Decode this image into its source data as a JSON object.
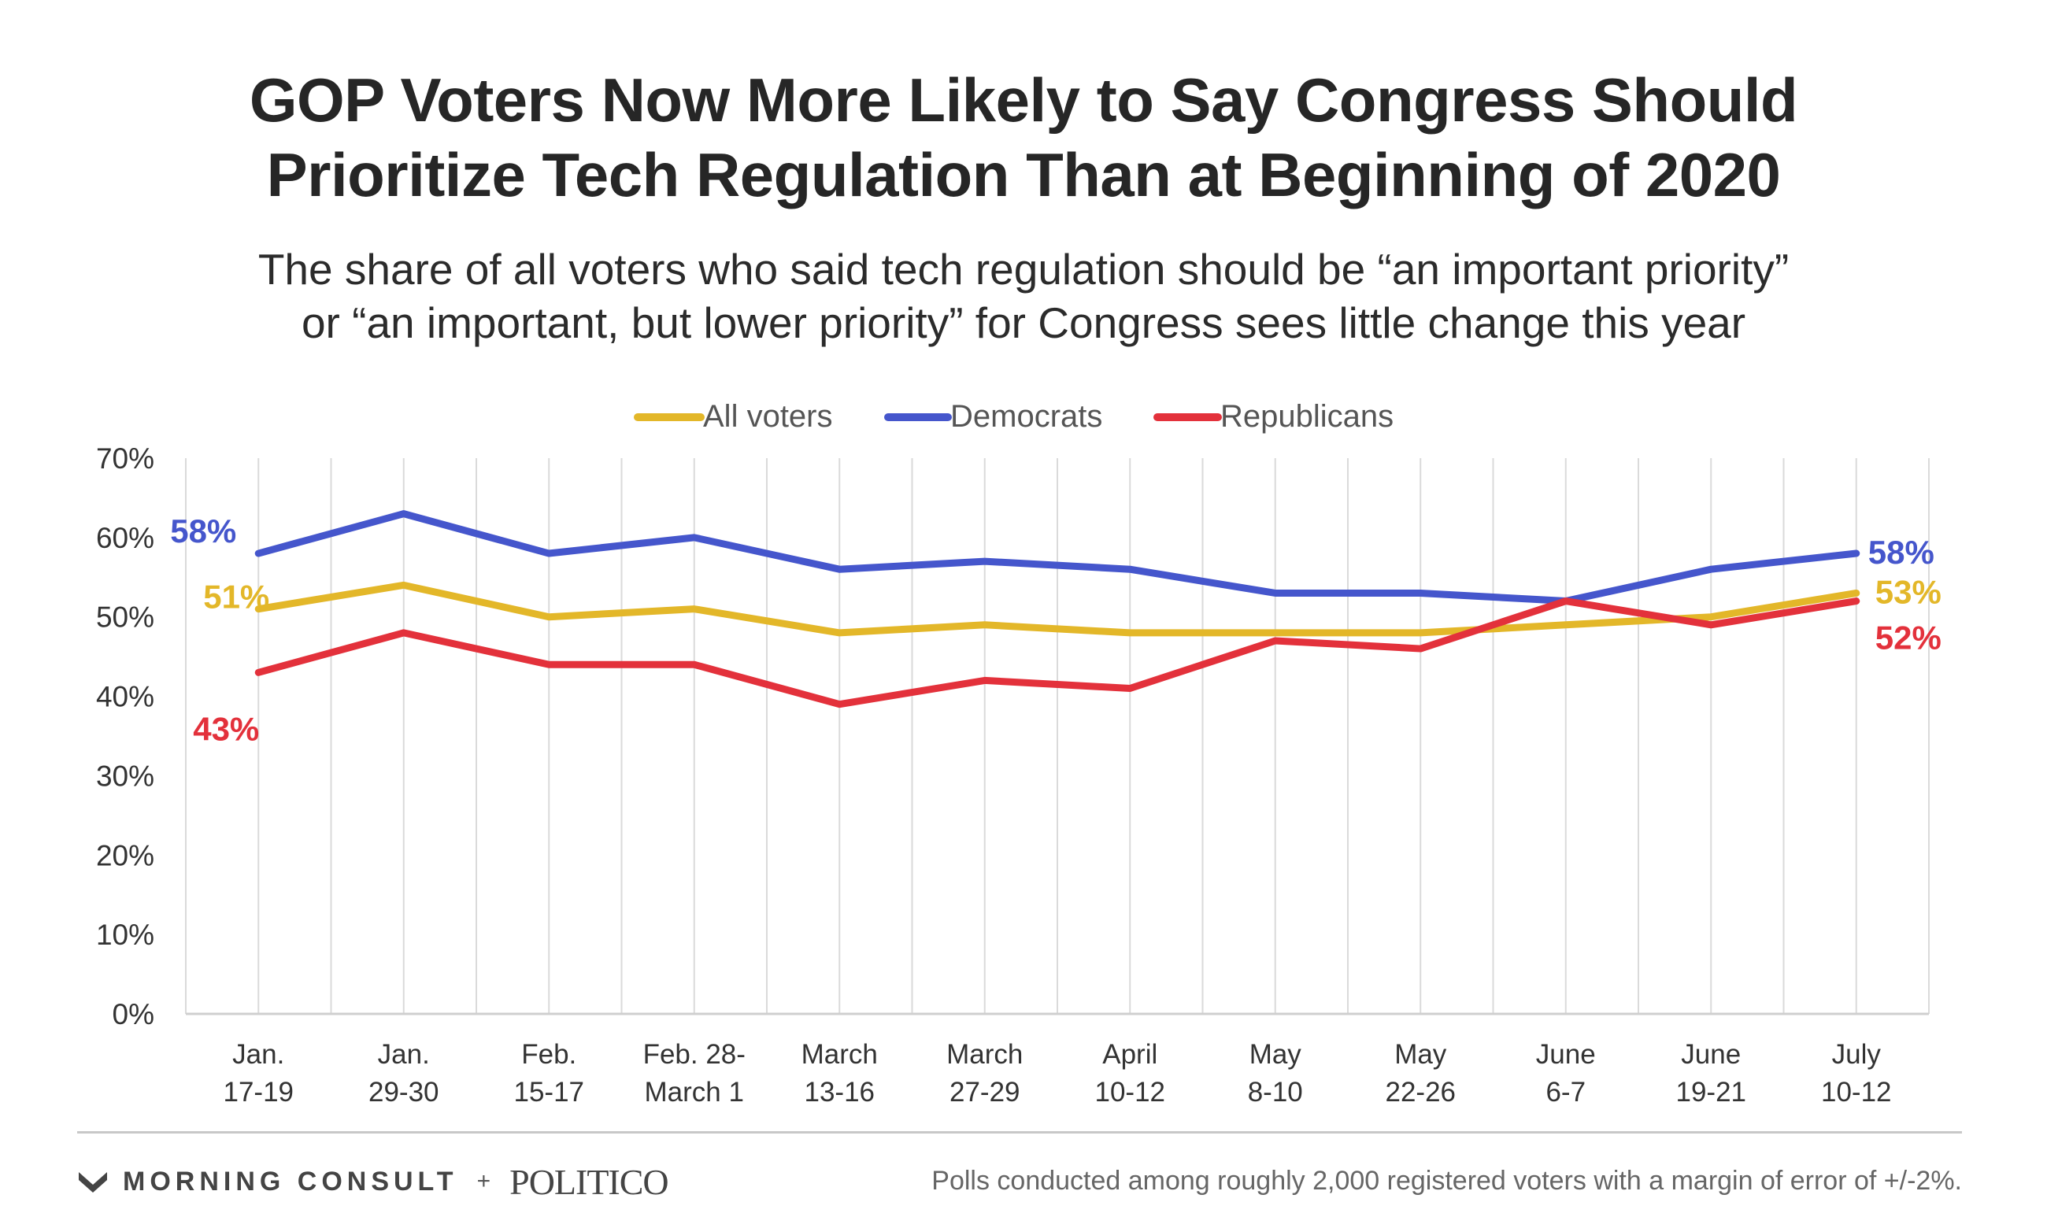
{
  "header": {
    "title_line1": "GOP Voters Now More Likely to Say Congress Should",
    "title_line2": "Prioritize Tech Regulation Than at Beginning of 2020",
    "subtitle_line1": "The share of all voters who said tech regulation should be “an important priority”",
    "subtitle_line2": "or “an important, but lower priority” for Congress sees little change this year"
  },
  "chart_data": {
    "type": "line",
    "title": "GOP Voters Now More Likely to Say Congress Should Prioritize Tech Regulation Than at Beginning of 2020",
    "subtitle": "The share of all voters who said tech regulation should be “an important priority” or “an important, but lower priority” for Congress sees little change this year",
    "categories": [
      [
        "Jan.",
        "17-19"
      ],
      [
        "Jan.",
        "29-30"
      ],
      [
        "Feb.",
        "15-17"
      ],
      [
        "Feb. 28-",
        "March 1"
      ],
      [
        "March",
        "13-16"
      ],
      [
        "March",
        "27-29"
      ],
      [
        "April",
        "10-12"
      ],
      [
        "May",
        "8-10"
      ],
      [
        "May",
        "22-26"
      ],
      [
        "June",
        "6-7"
      ],
      [
        "June",
        "19-21"
      ],
      [
        "July",
        "10-12"
      ]
    ],
    "series": [
      {
        "name": "All voters",
        "color": "#E3B729",
        "values": [
          51,
          54,
          50,
          51,
          48,
          49,
          48,
          48,
          48,
          49,
          50,
          53
        ],
        "start_label": "51%",
        "end_label": "53%"
      },
      {
        "name": "Democrats",
        "color": "#4556CC",
        "values": [
          58,
          63,
          58,
          60,
          56,
          57,
          56,
          53,
          53,
          52,
          56,
          58
        ],
        "start_label": "58%",
        "end_label": "58%"
      },
      {
        "name": "Republicans",
        "color": "#E3313B",
        "values": [
          43,
          48,
          44,
          44,
          39,
          42,
          41,
          47,
          46,
          52,
          49,
          52
        ],
        "start_label": "43%",
        "end_label": "52%"
      }
    ],
    "yticks": [
      "0%",
      "10%",
      "20%",
      "30%",
      "40%",
      "50%",
      "60%",
      "70%"
    ],
    "ylim": [
      0,
      70
    ],
    "grid": "vertical",
    "legend_position": "top-center"
  },
  "footer": {
    "brand_left": "MORNING CONSULT",
    "brand_plus": "+",
    "brand_right": "POLITICO",
    "note": "Polls conducted among roughly 2,000 registered voters with a margin of error of +/-2%."
  }
}
